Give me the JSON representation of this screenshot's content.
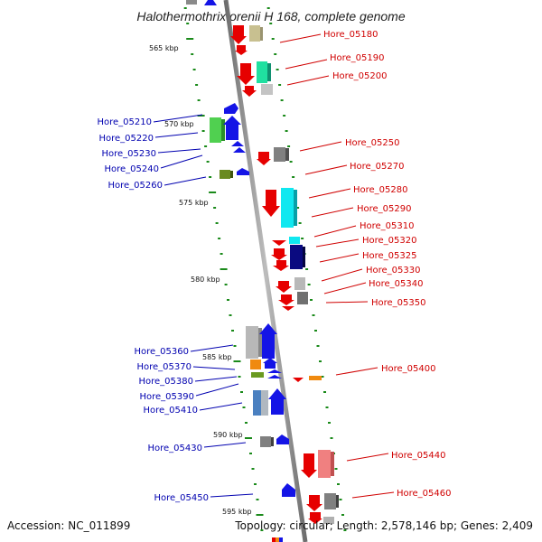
{
  "title": "Halothermothrix orenii H 168, complete genome",
  "footer": {
    "accession": "Accession: NC_011899",
    "topology": "Topology: circular; Length: 2,578,146 bp; Genes: 2,409"
  },
  "colors": {
    "forward_strand": "#1414e6",
    "reverse_strand": "#e60000",
    "tick": "#1a8a1a",
    "backbone": "#8c8c8c",
    "forward_label": "#0000b0",
    "reverse_label": "#d00000"
  },
  "kbp_ticks": [
    "565 kbp",
    "570 kbp",
    "575 kbp",
    "580 kbp",
    "585 kbp",
    "590 kbp",
    "595 kbp"
  ],
  "genes_reverse": [
    "Hore_05180",
    "Hore_05190",
    "Hore_05200",
    "Hore_05250",
    "Hore_05270",
    "Hore_05280",
    "Hore_05290",
    "Hore_05310",
    "Hore_05320",
    "Hore_05325",
    "Hore_05330",
    "Hore_05340",
    "Hore_05350",
    "Hore_05400",
    "Hore_05440",
    "Hore_05460"
  ],
  "genes_forward": [
    "Hore_05210",
    "Hore_05220",
    "Hore_05230",
    "Hore_05240",
    "Hore_05260",
    "Hore_05360",
    "Hore_05370",
    "Hore_05380",
    "Hore_05390",
    "Hore_05410",
    "Hore_05430",
    "Hore_05450"
  ]
}
